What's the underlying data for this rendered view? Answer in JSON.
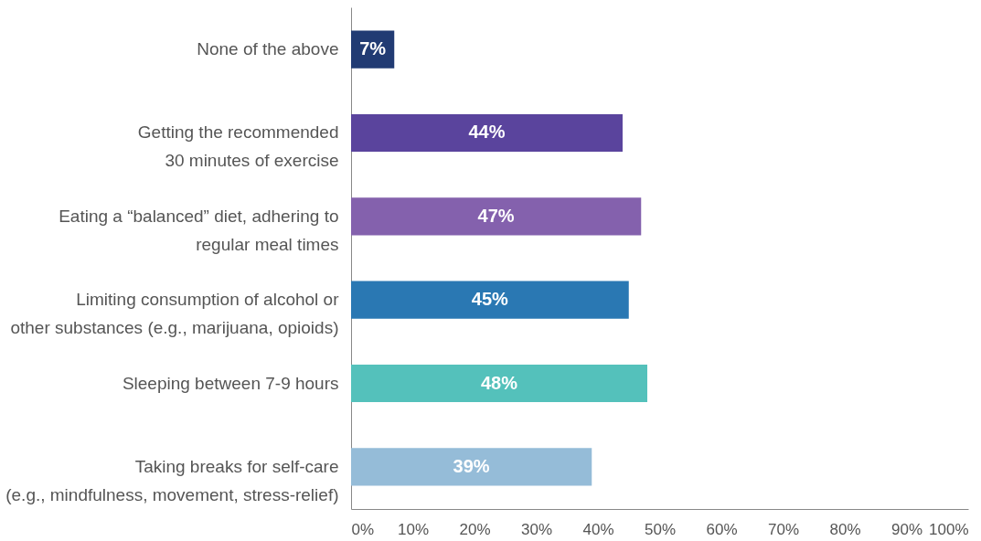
{
  "chart_data": {
    "type": "bar",
    "orientation": "horizontal",
    "categories": [
      "None of the above",
      "Getting the recommended\n30 minutes of exercise",
      "Eating a “balanced” diet, adhering to\nregular meal times",
      "Limiting consumption of alcohol or\nother substances (e.g., marijuana, opioids)",
      "Sleeping between 7-9 hours",
      "Taking breaks for self-care\n(e.g., mindfulness, movement, stress-relief)"
    ],
    "values": [
      7,
      44,
      47,
      45,
      48,
      39
    ],
    "colors": [
      "#213b73",
      "#5a449d",
      "#8461ad",
      "#2a78b3",
      "#54c1bb",
      "#95bcd8"
    ],
    "value_labels": [
      "7%",
      "44%",
      "47%",
      "45%",
      "48%",
      "39%"
    ],
    "xlim": [
      0,
      100
    ],
    "xticks": [
      {
        "value": 0,
        "label": "0%"
      },
      {
        "value": 10,
        "label": "10%"
      },
      {
        "value": 20,
        "label": "20%"
      },
      {
        "value": 30,
        "label": "30%"
      },
      {
        "value": 40,
        "label": "40%"
      },
      {
        "value": 50,
        "label": "50%"
      },
      {
        "value": 60,
        "label": "60%"
      },
      {
        "value": 70,
        "label": "70%"
      },
      {
        "value": 80,
        "label": "80%"
      },
      {
        "value": 90,
        "label": "90%"
      },
      {
        "value": 100,
        "label": "100%"
      }
    ],
    "grid": false
  }
}
